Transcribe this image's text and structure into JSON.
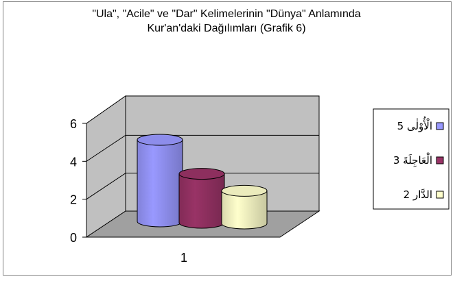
{
  "chart_data": {
    "type": "bar",
    "style": "3d-cylinder",
    "title_lines": [
      "\"Ula\", \"Acile\" ve \"Dar\" Kelimelerinin \"Dünya\" Anlamında",
      "Kur'an'daki Dağılımları (Grafik 6)"
    ],
    "categories": [
      "1"
    ],
    "series": [
      {
        "name": "الْأُوْلٰى 5",
        "values": [
          5
        ],
        "color": "#9999ff"
      },
      {
        "name": "الْعَاجِلَةَ 3",
        "values": [
          3
        ],
        "color": "#993366"
      },
      {
        "name": "الدَّار 2",
        "values": [
          2
        ],
        "color": "#ffffcc"
      }
    ],
    "ylim": [
      0,
      6
    ],
    "yticks": [
      "0",
      "2",
      "4",
      "6"
    ],
    "xlabel": "",
    "ylabel": "",
    "grid": true,
    "legend_position": "right"
  }
}
